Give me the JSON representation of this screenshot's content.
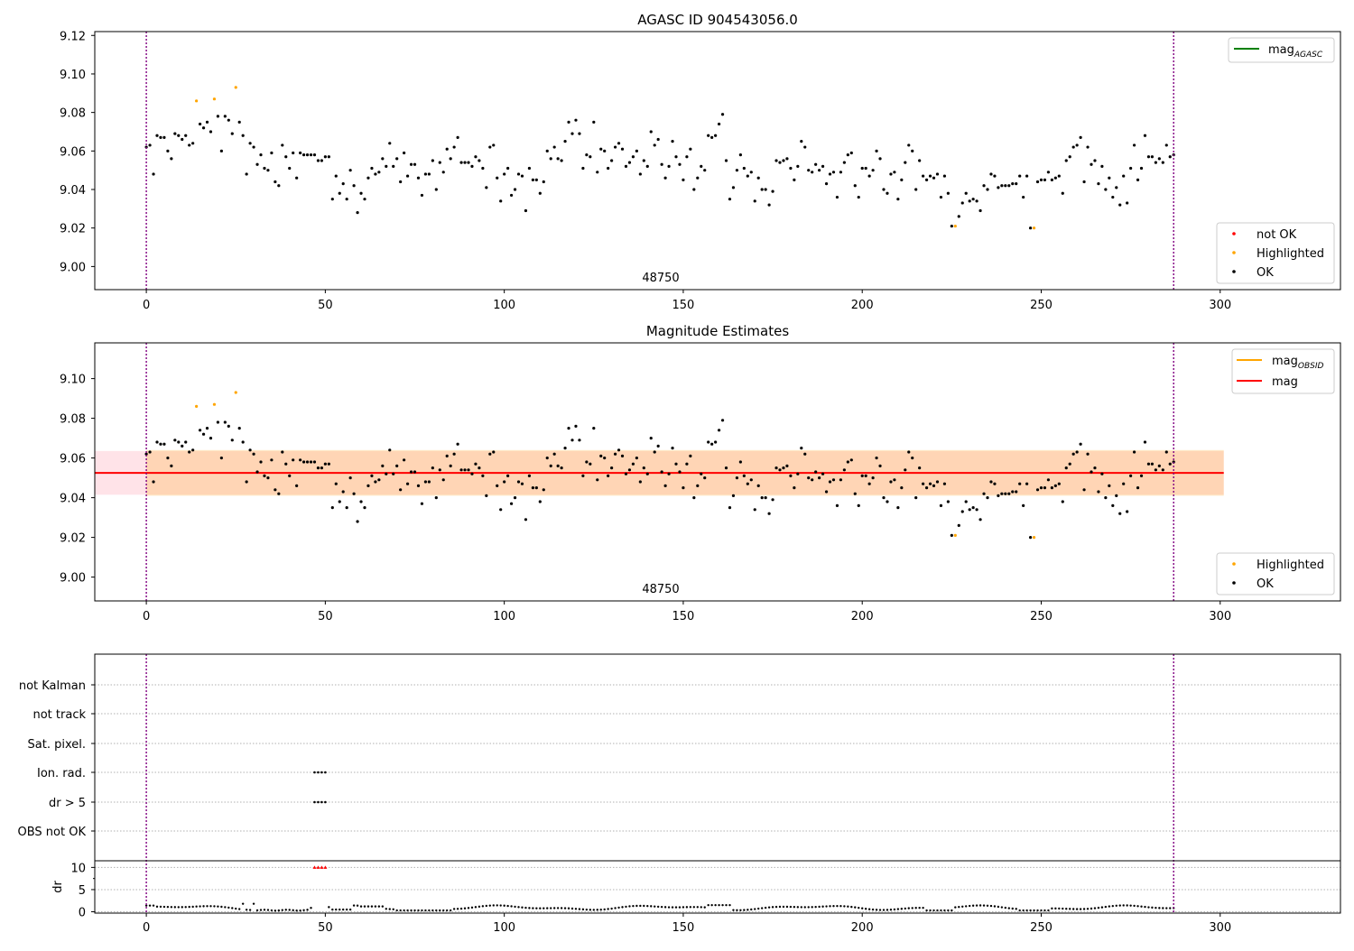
{
  "chart_data": [
    {
      "type": "scatter",
      "title": "AGASC ID 904543056.0",
      "ylim": [
        8.988,
        9.122
      ],
      "yticks": [
        "9.00",
        "9.02",
        "9.04",
        "9.06",
        "9.08",
        "9.10",
        "9.12"
      ],
      "xlim": [
        -14.4,
        333.6
      ],
      "xticks": [
        "0",
        "50",
        "100",
        "150",
        "200",
        "250",
        "300"
      ],
      "obsid_label": "48750",
      "vlines_x": [
        0,
        287
      ],
      "grid": false,
      "legend_top": {
        "position": "top-right",
        "entries": [
          {
            "label_main": "mag",
            "label_sub": "AGASC",
            "color": "#008000",
            "kind": "line"
          }
        ]
      },
      "legend_bottom": {
        "position": "bottom-right",
        "entries": [
          {
            "label": "not OK",
            "color": "#ff0000"
          },
          {
            "label": "Highlighted",
            "color": "#ffa500"
          },
          {
            "label": "OK",
            "color": "#000000"
          }
        ]
      },
      "series": [
        {
          "name": "OK",
          "color": "#000000"
        },
        {
          "name": "Highlighted",
          "color": "#ffa500"
        },
        {
          "name": "not OK",
          "color": "#ff0000",
          "x": [],
          "y": []
        }
      ]
    },
    {
      "type": "scatter",
      "title": "Magnitude Estimates",
      "ylim": [
        8.988,
        9.118
      ],
      "yticks": [
        "9.00",
        "9.02",
        "9.04",
        "9.06",
        "9.08",
        "9.10"
      ],
      "xlim": [
        -14.4,
        333.6
      ],
      "xticks": [
        "0",
        "50",
        "100",
        "150",
        "200",
        "250",
        "300"
      ],
      "obsid_label": "48750",
      "vlines_x": [
        0,
        287
      ],
      "mag_line": {
        "y": 9.0525,
        "x_range": [
          -14.4,
          301
        ],
        "color": "#ff0000"
      },
      "mag_band": {
        "y_range": [
          9.0415,
          9.0635
        ],
        "x_range": [
          -14.4,
          301
        ],
        "color": "#ffc0cb"
      },
      "obsid_band": {
        "y_range": [
          9.041,
          9.064
        ],
        "x_range": [
          0,
          301
        ],
        "color": "#ffa500"
      },
      "legend_top": {
        "position": "top-right",
        "entries": [
          {
            "label_main": "mag",
            "label_sub": "OBSID",
            "color": "#ffa500",
            "kind": "line"
          },
          {
            "label_main": "mag",
            "label_sub": "",
            "color": "#ff0000",
            "kind": "line"
          }
        ]
      },
      "legend_bottom": {
        "position": "bottom-right",
        "entries": [
          {
            "label": "Highlighted",
            "color": "#ffa500"
          },
          {
            "label": "OK",
            "color": "#000000"
          }
        ]
      }
    },
    {
      "type": "scatter",
      "title": "",
      "xlim": [
        -14.4,
        333.6
      ],
      "xticks": [
        "0",
        "50",
        "100",
        "150",
        "200",
        "250",
        "300"
      ],
      "vlines_x": [
        0,
        287
      ],
      "flag_labels": [
        "not Kalman",
        "not track",
        "Sat. pixel.",
        "Ion. rad.",
        "dr > 5",
        "OBS not OK"
      ],
      "flag_points": {
        "Ion. rad.": [
          47,
          48,
          49,
          50
        ],
        "dr > 5": [
          47,
          48,
          49,
          50
        ]
      },
      "dr_ylabel": "dr",
      "dr_yticks": [
        "0",
        "5",
        "10"
      ],
      "dr_ylim": [
        -0.3,
        11.5
      ],
      "dr_clip_x": [
        47,
        48,
        49,
        50
      ],
      "dr_clip_value": 10
    }
  ]
}
